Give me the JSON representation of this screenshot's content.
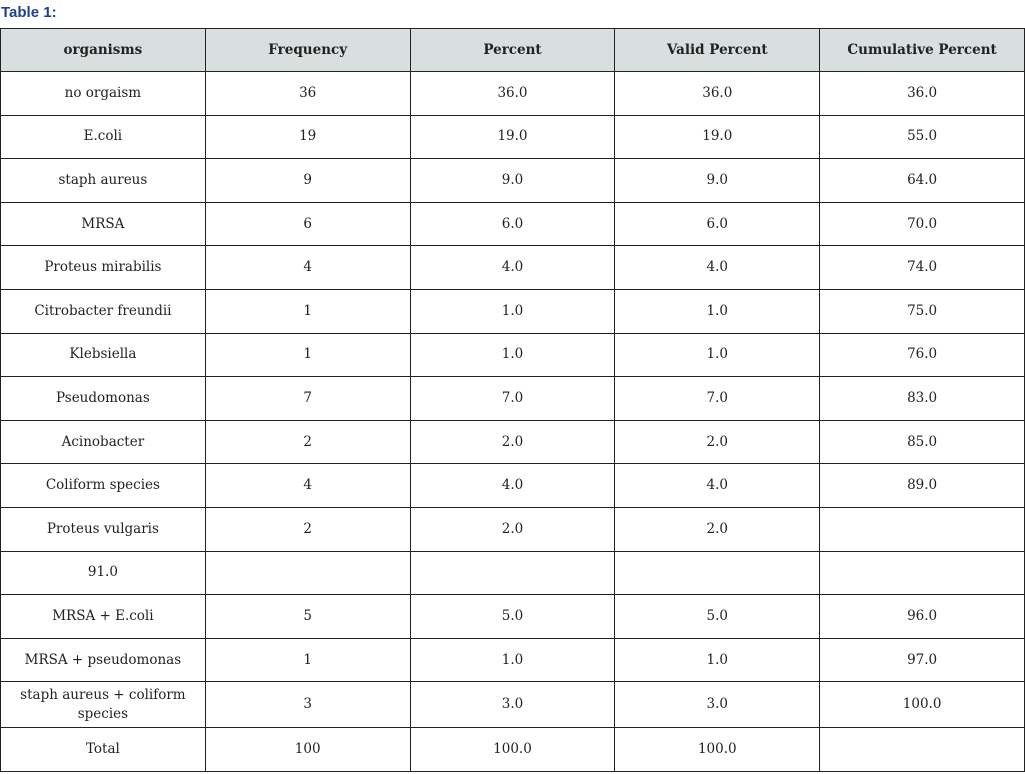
{
  "title": "Table 1:",
  "table": {
    "headers": [
      "organisms",
      "Frequency",
      "Percent",
      "Valid Percent",
      "Cumulative Percent"
    ],
    "rows": [
      [
        "no orgaism",
        "36",
        "36.0",
        "36.0",
        "36.0"
      ],
      [
        "E.coli",
        "19",
        "19.0",
        "19.0",
        "55.0"
      ],
      [
        "staph aureus",
        "9",
        "9.0",
        "9.0",
        "64.0"
      ],
      [
        "MRSA",
        "6",
        "6.0",
        "6.0",
        "70.0"
      ],
      [
        "Proteus mirabilis",
        "4",
        "4.0",
        "4.0",
        "74.0"
      ],
      [
        "Citrobacter freundii",
        "1",
        "1.0",
        "1.0",
        "75.0"
      ],
      [
        "Klebsiella",
        "1",
        "1.0",
        "1.0",
        "76.0"
      ],
      [
        "Pseudomonas",
        "7",
        "7.0",
        "7.0",
        "83.0"
      ],
      [
        "Acinobacter",
        "2",
        "2.0",
        "2.0",
        "85.0"
      ],
      [
        "Coliform species",
        "4",
        "4.0",
        "4.0",
        "89.0"
      ],
      [
        "Proteus vulgaris",
        "2",
        "2.0",
        "2.0",
        ""
      ],
      [
        "91.0",
        "",
        "",
        "",
        ""
      ],
      [
        "MRSA + E.coli",
        "5",
        "5.0",
        "5.0",
        "96.0"
      ],
      [
        "MRSA + pseudomonas",
        "1",
        "1.0",
        "1.0",
        "97.0"
      ],
      [
        "staph aureus + coliform species",
        "3",
        "3.0",
        "3.0",
        "100.0"
      ],
      [
        "Total",
        "100",
        "100.0",
        "100.0",
        ""
      ]
    ]
  }
}
